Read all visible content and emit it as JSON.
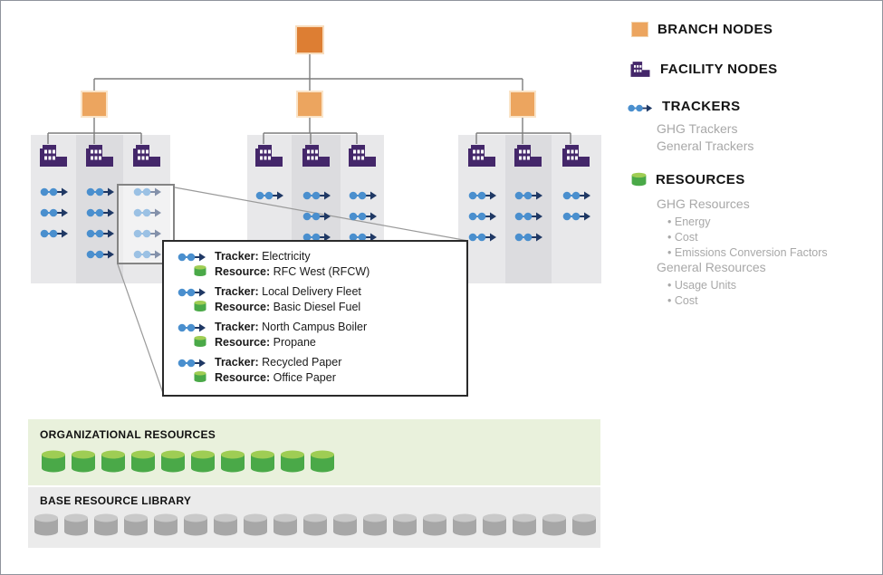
{
  "legend": {
    "branch_nodes": "BRANCH NODES",
    "facility_nodes": "FACILITY NODES",
    "trackers": "TRACKERS",
    "tracker_types": [
      "GHG Trackers",
      "General Trackers"
    ],
    "resources": "RESOURCES",
    "ghg_resources_label": "GHG Resources",
    "ghg_resources": [
      "Energy",
      "Cost",
      "Emissions Conversion Factors"
    ],
    "general_resources_label": "General Resources",
    "general_resources": [
      "Usage Units",
      "Cost"
    ]
  },
  "callout": {
    "tracker_label": "Tracker:",
    "resource_label": "Resource:",
    "items": [
      {
        "tracker": "Electricity",
        "resource": "RFC West (RFCW)"
      },
      {
        "tracker": "Local Delivery Fleet",
        "resource": "Basic Diesel Fuel"
      },
      {
        "tracker": "North Campus Boiler",
        "resource": "Propane"
      },
      {
        "tracker": "Recycled Paper",
        "resource": "Office Paper"
      }
    ]
  },
  "tree": {
    "branch_count": 3,
    "groups": [
      {
        "tracker_counts": [
          3,
          4,
          4
        ]
      },
      {
        "tracker_counts": [
          1,
          3,
          3
        ]
      },
      {
        "tracker_counts": [
          3,
          3,
          2
        ]
      }
    ]
  },
  "bars": {
    "organizational": {
      "label": "ORGANIZATIONAL RESOURCES",
      "cylinder_count": 10
    },
    "base_library": {
      "label": "BASE RESOURCE LIBRARY",
      "cylinder_count": 19
    }
  },
  "colors": {
    "branch_root": "#dd7e33",
    "branch_child": "#eca55f",
    "facility_purple": "#44276a",
    "tracker_dot": "#4a8fce",
    "tracker_arrow": "#1f3864",
    "resource_green_body": "#4aa948",
    "resource_green_top": "#9fcd54",
    "resource_gray_body": "#a7a7a7",
    "resource_gray_top": "#c9c9c9",
    "org_bar_bg": "#e9f1dc",
    "base_bar_bg": "#ebebeb",
    "legend_muted": "#a8a8a8",
    "connector_gray": "#7d7d7d"
  }
}
